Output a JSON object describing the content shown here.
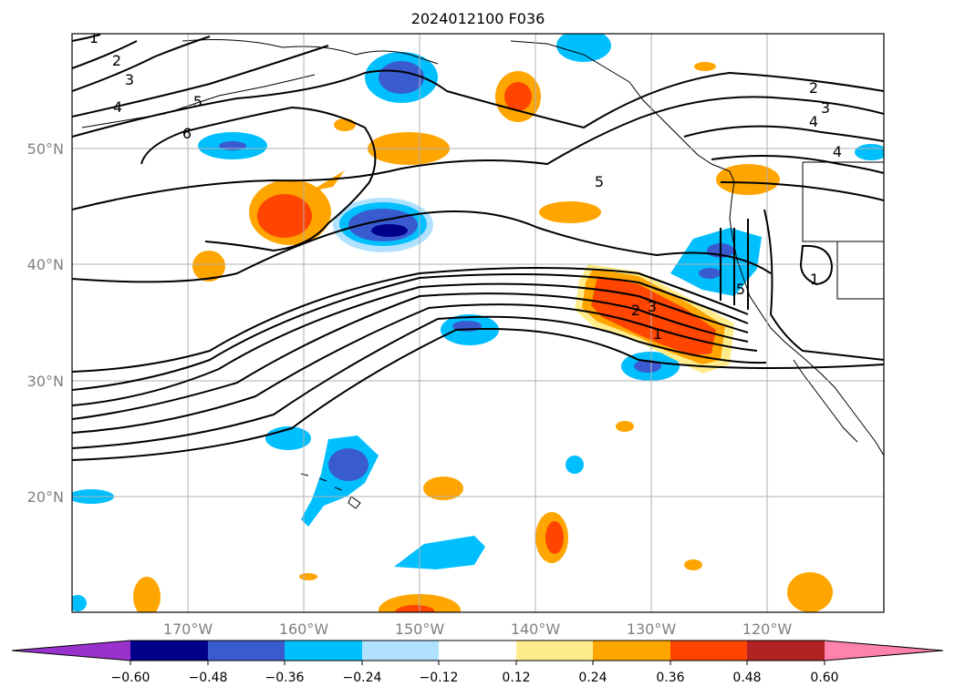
{
  "title": "2024012100 F036",
  "axes": {
    "lon_labels": [
      "170°W",
      "160°W",
      "150°W",
      "140°W",
      "130°W",
      "120°W"
    ],
    "lat_labels": [
      "50°N",
      "40°N",
      "30°N",
      "20°N"
    ]
  },
  "colorbar": {
    "ticks": [
      "−0.60",
      "−0.48",
      "−0.36",
      "−0.24",
      "−0.12",
      "0.12",
      "0.24",
      "0.36",
      "0.48",
      "0.60"
    ],
    "colors": [
      "#9932cc",
      "#00008b",
      "#3a5bd0",
      "#00bfff",
      "#b0e2ff",
      "#ffffff",
      "#ffec8b",
      "#ffa500",
      "#ff4500",
      "#b22222",
      "#ff82ab"
    ]
  },
  "contour_labels": [
    "1",
    "2",
    "3",
    "4",
    "5",
    "6",
    "5",
    "2",
    "3",
    "4",
    "4",
    "5",
    "2",
    "3",
    "1",
    "1"
  ]
}
